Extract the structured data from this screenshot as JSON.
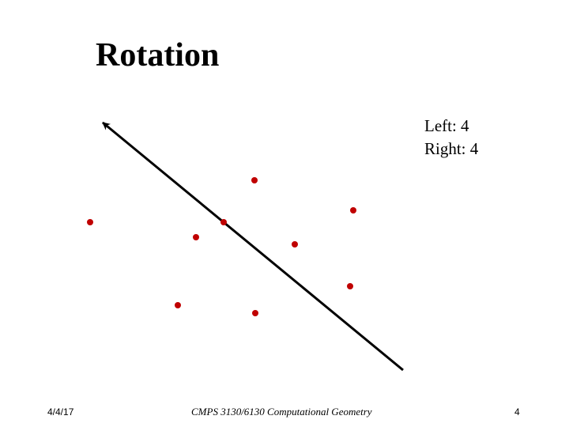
{
  "slide": {
    "title": "Rotation",
    "left_label": "Left: 4",
    "right_label": "Right: 4"
  },
  "footer": {
    "date": "4/4/17",
    "course": "CMPS 3130/6130 Computational Geometry",
    "page_number": "4"
  },
  "colors": {
    "point": "#c00000",
    "line": "#000000",
    "background": "#ffffff"
  },
  "icons": {
    "arrow": "arrow-up-left-icon",
    "point": "dot-icon"
  }
}
